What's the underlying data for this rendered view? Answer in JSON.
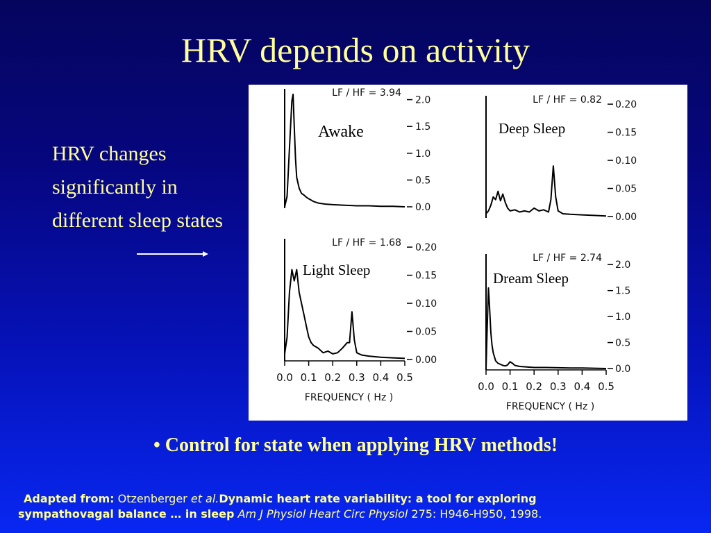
{
  "slide": {
    "title": "HRV depends on activity",
    "side_text": "HRV changes significantly in different sleep states",
    "bullet": "• Control for state when applying HRV methods!"
  },
  "citation": {
    "label": "Adapted from:",
    "author": "Otzenberger",
    "et_al": "et al.",
    "title_part1": "Dynamic heart rate variability: a tool for exploring",
    "title_part2": "sympathovagal balance … in sleep",
    "journal": "Am J Physiol Heart Circ Physiol",
    "ref": "275: H946-H950, 1998."
  },
  "figure": {
    "freq_label": "FREQUENCY  ( Hz )",
    "freq_ticks": [
      "0.0",
      "0.1",
      "0.2",
      "0.3",
      "0.4",
      "0.5"
    ]
  },
  "chart_data": [
    {
      "type": "line",
      "annotation": "Awake",
      "title": "LF / HF = 3.94",
      "xlabel": "",
      "x_ticks": [],
      "y_ticks": [
        "0.0",
        "0.5",
        "1.0",
        "1.5",
        "2.0"
      ],
      "ylim": [
        0,
        2.15
      ],
      "xlim": [
        0,
        0.5
      ],
      "series": [
        {
          "x": [
            0.0,
            0.01,
            0.02,
            0.03,
            0.035,
            0.04,
            0.045,
            0.05,
            0.06,
            0.07,
            0.08,
            0.09,
            0.1,
            0.12,
            0.14,
            0.17,
            0.2,
            0.25,
            0.3,
            0.35,
            0.4,
            0.45,
            0.5
          ],
          "y": [
            0.0,
            0.2,
            1.1,
            1.98,
            2.1,
            1.5,
            0.9,
            0.55,
            0.35,
            0.25,
            0.22,
            0.18,
            0.15,
            0.1,
            0.07,
            0.05,
            0.04,
            0.03,
            0.02,
            0.02,
            0.01,
            0.01,
            0.0
          ]
        }
      ]
    },
    {
      "type": "line",
      "annotation": "Deep Sleep",
      "title": "LF / HF = 0.82",
      "xlabel": "",
      "x_ticks": [],
      "y_ticks": [
        "0.00",
        "0.05",
        "0.10",
        "0.15",
        "0.20"
      ],
      "ylim": [
        0,
        0.21
      ],
      "xlim": [
        0,
        0.5
      ],
      "series": [
        {
          "x": [
            0.0,
            0.01,
            0.02,
            0.03,
            0.04,
            0.05,
            0.06,
            0.07,
            0.08,
            0.09,
            0.1,
            0.12,
            0.14,
            0.16,
            0.18,
            0.2,
            0.22,
            0.24,
            0.26,
            0.27,
            0.28,
            0.29,
            0.3,
            0.32,
            0.35,
            0.4,
            0.45,
            0.5
          ],
          "y": [
            0.005,
            0.01,
            0.02,
            0.035,
            0.03,
            0.045,
            0.028,
            0.04,
            0.025,
            0.015,
            0.01,
            0.012,
            0.008,
            0.01,
            0.008,
            0.015,
            0.01,
            0.012,
            0.008,
            0.03,
            0.09,
            0.035,
            0.01,
            0.005,
            0.004,
            0.003,
            0.002,
            0.001
          ]
        }
      ]
    },
    {
      "type": "line",
      "annotation": "Light Sleep",
      "title": "LF / HF = 1.68",
      "xlabel": "FREQUENCY  ( Hz )",
      "x_ticks": [
        "0.0",
        "0.1",
        "0.2",
        "0.3",
        "0.4",
        "0.5"
      ],
      "y_ticks": [
        "0.00",
        "0.05",
        "0.10",
        "0.15",
        "0.20"
      ],
      "ylim": [
        0,
        0.21
      ],
      "xlim": [
        0,
        0.5
      ],
      "series": [
        {
          "x": [
            0.0,
            0.01,
            0.02,
            0.03,
            0.04,
            0.05,
            0.06,
            0.07,
            0.08,
            0.09,
            0.1,
            0.11,
            0.12,
            0.14,
            0.16,
            0.18,
            0.2,
            0.22,
            0.24,
            0.25,
            0.26,
            0.27,
            0.28,
            0.29,
            0.3,
            0.32,
            0.35,
            0.4,
            0.45,
            0.5
          ],
          "y": [
            0.01,
            0.04,
            0.12,
            0.16,
            0.14,
            0.16,
            0.12,
            0.1,
            0.08,
            0.06,
            0.04,
            0.03,
            0.025,
            0.02,
            0.012,
            0.015,
            0.01,
            0.012,
            0.02,
            0.025,
            0.03,
            0.03,
            0.085,
            0.035,
            0.012,
            0.008,
            0.006,
            0.004,
            0.003,
            0.002
          ]
        }
      ]
    },
    {
      "type": "line",
      "annotation": "Dream Sleep",
      "title": "LF / HF = 2.74",
      "xlabel": "FREQUENCY  ( Hz )",
      "x_ticks": [
        "0.0",
        "0.1",
        "0.2",
        "0.3",
        "0.4",
        "0.5"
      ],
      "y_ticks": [
        "0.0",
        "0.5",
        "1.0",
        "1.5",
        "2.0"
      ],
      "ylim": [
        0,
        2.15
      ],
      "xlim": [
        0,
        0.5
      ],
      "series": [
        {
          "x": [
            0.0,
            0.005,
            0.01,
            0.015,
            0.02,
            0.025,
            0.03,
            0.04,
            0.05,
            0.06,
            0.07,
            0.08,
            0.09,
            0.1,
            0.11,
            0.12,
            0.14,
            0.17,
            0.2,
            0.25,
            0.3,
            0.35,
            0.4,
            0.45,
            0.5
          ],
          "y": [
            0.0,
            0.8,
            1.55,
            1.15,
            0.7,
            0.45,
            0.3,
            0.15,
            0.1,
            0.08,
            0.06,
            0.05,
            0.07,
            0.13,
            0.1,
            0.06,
            0.04,
            0.03,
            0.02,
            0.02,
            0.015,
            0.01,
            0.01,
            0.005,
            0.0
          ]
        }
      ]
    }
  ]
}
